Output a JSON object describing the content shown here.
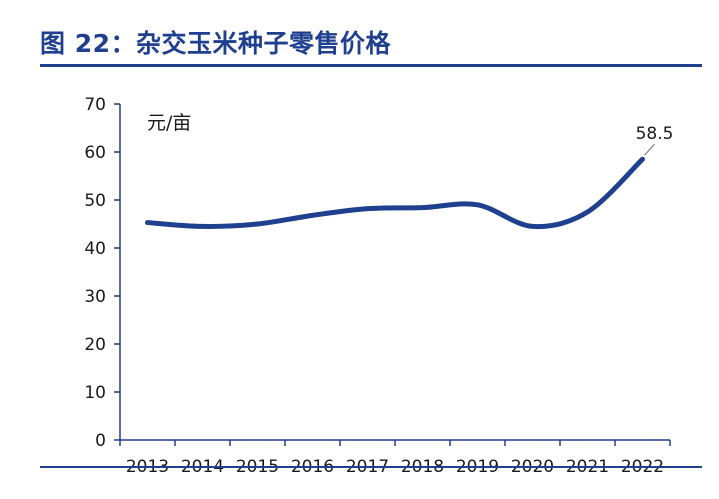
{
  "header": {
    "title": "图 22：杂交玉米种子零售价格"
  },
  "chart_data": {
    "type": "line",
    "title": "图 22：杂交玉米种子零售价格",
    "ylabel": "元/亩",
    "xlabel": "",
    "ylim": [
      0,
      70
    ],
    "yticks": [
      0,
      10,
      20,
      30,
      40,
      50,
      60,
      70
    ],
    "ytick_labels": [
      "0",
      "10",
      "20",
      "30",
      "40",
      "50",
      "60",
      "70"
    ],
    "categories": [
      "2013",
      "2014",
      "2015",
      "2016",
      "2017",
      "2018",
      "2019",
      "2020",
      "2021",
      "2022"
    ],
    "series": [
      {
        "values": [
          45.3,
          44.5,
          45.0,
          46.8,
          48.2,
          48.4,
          49.0,
          44.5,
          47.5,
          58.5
        ]
      }
    ],
    "annotation": {
      "text": "58.5",
      "category": "2022"
    },
    "line_color": "#1f3f8f",
    "grid": false
  }
}
